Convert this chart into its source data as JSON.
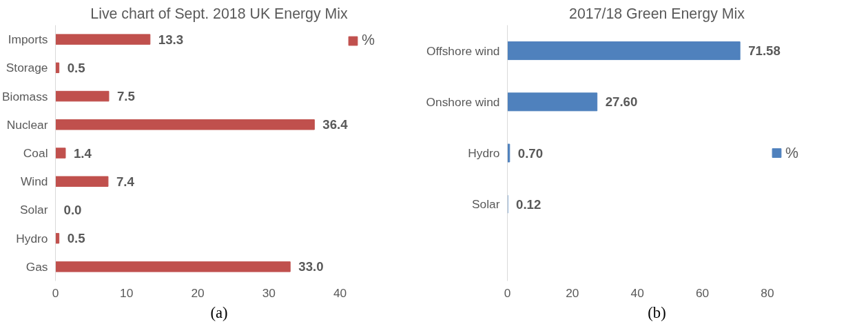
{
  "chart_data": [
    {
      "type": "bar",
      "orientation": "horizontal",
      "title": "Live chart of Sept. 2018 UK Energy Mix",
      "categories": [
        "Imports",
        "Storage",
        "Biomass",
        "Nuclear",
        "Coal",
        "Wind",
        "Solar",
        "Hydro",
        "Gas"
      ],
      "series": [
        {
          "name": "%",
          "color": "#c0504d",
          "values": [
            13.3,
            0.5,
            7.5,
            36.4,
            1.4,
            7.4,
            0.0,
            0.5,
            33.0
          ],
          "value_labels": [
            "13.3",
            "0.5",
            "7.5",
            "36.4",
            "1.4",
            "7.4",
            "0.0",
            "0.5",
            "33.0"
          ]
        }
      ],
      "xlim": [
        0,
        40
      ],
      "xticks": [
        0,
        10,
        20,
        30,
        40
      ],
      "grid": false,
      "legend": "top right",
      "annotations": [
        "(a)"
      ]
    },
    {
      "type": "bar",
      "orientation": "horizontal",
      "title": "2017/18 Green Energy Mix",
      "categories": [
        "Offshore wind",
        "Onshore wind",
        "Hydro",
        "Solar",
        null
      ],
      "series": [
        {
          "name": "%",
          "color": "#4f81bd",
          "values": [
            71.58,
            27.6,
            0.7,
            0.12,
            null
          ],
          "value_labels": [
            "71.58",
            "27.60",
            "0.70",
            "0.12",
            null
          ]
        }
      ],
      "xlim": [
        0,
        80
      ],
      "xticks": [
        0,
        20,
        40,
        60,
        80
      ],
      "grid": false,
      "legend": "right",
      "annotations": [
        "(b)"
      ]
    }
  ]
}
